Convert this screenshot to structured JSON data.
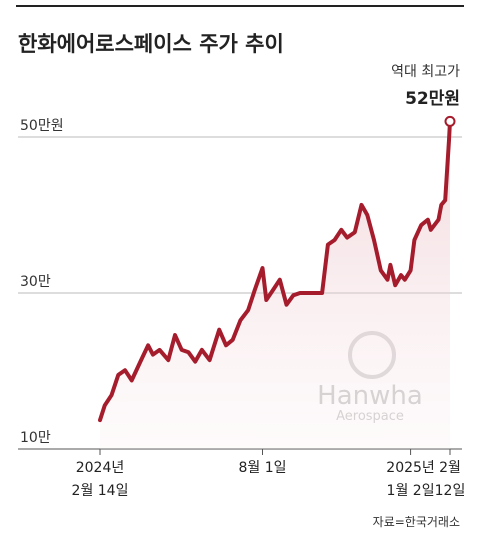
{
  "chart_data": {
    "type": "line",
    "title": "한화에어로스페이스 주가 추이",
    "annotation_label": "역대 최고가",
    "annotation_value": "52만원",
    "watermark": [
      "Hanwha",
      "Aerospace"
    ],
    "source": "자료=한국거래소",
    "x": [
      "2024-02-14",
      "2024-02-19",
      "2024-02-26",
      "2024-03-04",
      "2024-03-11",
      "2024-03-18",
      "2024-03-27",
      "2024-04-04",
      "2024-04-09",
      "2024-04-16",
      "2024-04-25",
      "2024-05-02",
      "2024-05-09",
      "2024-05-16",
      "2024-05-23",
      "2024-05-30",
      "2024-06-07",
      "2024-06-17",
      "2024-06-24",
      "2024-07-01",
      "2024-07-09",
      "2024-07-17",
      "2024-07-24",
      "2024-08-01",
      "2024-08-05",
      "2024-08-12",
      "2024-08-19",
      "2024-08-26",
      "2024-09-02",
      "2024-09-09",
      "2024-09-20",
      "2024-09-27",
      "2024-10-02",
      "2024-10-08",
      "2024-10-15",
      "2024-10-22",
      "2024-10-28",
      "2024-11-05",
      "2024-11-12",
      "2024-11-18",
      "2024-11-25",
      "2024-12-02",
      "2024-12-09",
      "2024-12-12",
      "2024-12-17",
      "2024-12-23",
      "2024-12-27",
      "2025-01-02",
      "2025-01-06",
      "2025-01-13",
      "2025-01-20",
      "2025-01-23",
      "2025-01-31",
      "2025-02-03",
      "2025-02-07",
      "2025-02-11",
      "2025-02-12"
    ],
    "series": [
      {
        "name": "주가",
        "color": "#a51d2d",
        "values": [
          13.7,
          15.6,
          16.9,
          19.5,
          20.1,
          18.8,
          21.2,
          23.3,
          22.1,
          22.7,
          21.4,
          24.6,
          22.7,
          22.4,
          21.2,
          22.7,
          21.4,
          25.3,
          23.3,
          24.0,
          26.5,
          27.8,
          30.4,
          33.2,
          29.1,
          30.4,
          31.7,
          28.5,
          29.7,
          30.0,
          30.0,
          30.0,
          30.0,
          36.2,
          36.8,
          38.1,
          37.1,
          37.8,
          41.3,
          40.0,
          36.8,
          32.9,
          31.7,
          33.6,
          31.0,
          32.3,
          31.7,
          32.9,
          36.8,
          38.7,
          39.4,
          38.1,
          39.4,
          41.3,
          41.9,
          49.6,
          52
        ]
      }
    ],
    "xlim": [
      "2024-02-14",
      "2025-02-12"
    ],
    "xticks": [
      {
        "value": "2024-02-14",
        "label": "2024년\n2월 14일"
      },
      {
        "value": "2024-08-01",
        "label": "8월 1일"
      },
      {
        "value": "2025-01-02",
        "label": "2025년\n1월 2일"
      },
      {
        "value": "2025-02-12",
        "label": "2월\n12일"
      }
    ],
    "ylim": [
      10,
      55
    ],
    "yticks": [
      {
        "value": 10,
        "label": "10만"
      },
      {
        "value": 30,
        "label": "30만"
      },
      {
        "value": 50,
        "label": "50만원"
      }
    ],
    "grid": true
  }
}
